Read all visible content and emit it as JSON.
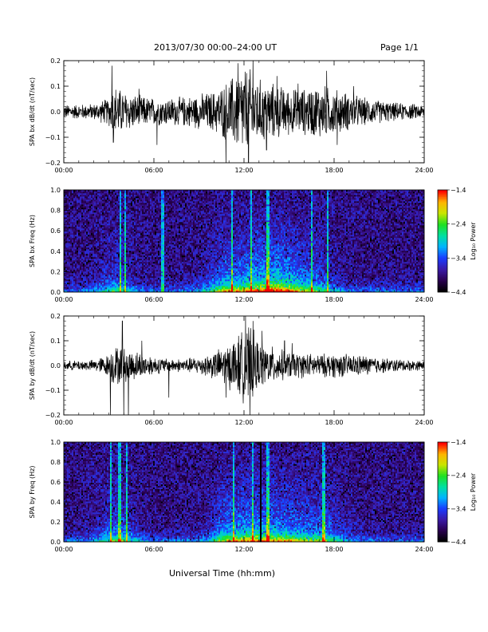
{
  "header": {
    "title": "2013/07/30  00:00–24:00 UT",
    "page": "Page 1/1"
  },
  "footer": {
    "xlabel": "Universal Time (hh:mm)"
  },
  "colors": {
    "waveform": "#000000",
    "colormap": [
      "#000000",
      "#2a0050",
      "#3a1aa8",
      "#1a3cff",
      "#00b4ff",
      "#00e0a0",
      "#20e020",
      "#c8e600",
      "#ffb400",
      "#ff0000"
    ]
  },
  "chart_data": [
    {
      "type": "line",
      "panel": "bx-waveform",
      "ylabel": "SPA bx dB/dt (nT/sec)",
      "ylim": [
        -0.2,
        0.2
      ],
      "yticks": [
        -0.2,
        -0.1,
        0.0,
        0.1,
        0.2
      ],
      "ytick_labels": [
        "−0.2",
        "−0.1",
        "0.0",
        "0.1",
        "0.2"
      ],
      "xlim": [
        0,
        24
      ],
      "xtick_labels": [
        "00:00",
        "06:00",
        "12:00",
        "18:00",
        "24:00"
      ],
      "envelope_hours": [
        0,
        2,
        3,
        3.3,
        4,
        5,
        6,
        7,
        8,
        9,
        10,
        10.5,
        11,
        11.5,
        12,
        12.5,
        13,
        14,
        15,
        16,
        17,
        18,
        19,
        20,
        21,
        22,
        23,
        24
      ],
      "envelope_amp": [
        0.03,
        0.035,
        0.06,
        0.12,
        0.09,
        0.07,
        0.06,
        0.06,
        0.065,
        0.075,
        0.09,
        0.11,
        0.14,
        0.17,
        0.2,
        0.18,
        0.14,
        0.12,
        0.1,
        0.1,
        0.12,
        0.1,
        0.08,
        0.06,
        0.05,
        0.04,
        0.035,
        0.03
      ],
      "spikes": [
        [
          3.2,
          0.18
        ],
        [
          3.3,
          -0.12
        ],
        [
          5.0,
          0.09
        ],
        [
          6.2,
          -0.13
        ],
        [
          10.8,
          -0.21
        ],
        [
          11.6,
          0.19
        ],
        [
          12.3,
          -0.22
        ],
        [
          12.6,
          0.21
        ],
        [
          13.5,
          -0.15
        ],
        [
          14.2,
          0.14
        ],
        [
          15.6,
          0.11
        ],
        [
          17.5,
          0.16
        ],
        [
          18.2,
          -0.13
        ],
        [
          19.3,
          0.1
        ]
      ]
    },
    {
      "type": "heatmap",
      "panel": "bx-spectrogram",
      "ylabel": "SPA bx Freq (Hz)",
      "ylim": [
        0.0,
        1.0
      ],
      "yticks": [
        0.0,
        0.2,
        0.4,
        0.6,
        0.8,
        1.0
      ],
      "ytick_labels": [
        "0.0",
        "0.2",
        "0.4",
        "0.6",
        "0.8",
        "1.0"
      ],
      "xlim": [
        0,
        24
      ],
      "xtick_labels": [
        "00:00",
        "06:00",
        "12:00",
        "18:00",
        "24:00"
      ],
      "colorbar_label": "Log₁₀ Power",
      "colorbar_range": [
        -4.4,
        -1.4
      ],
      "colorbar_ticks": [
        -1.4,
        -2.4,
        -3.4,
        -4.4
      ],
      "colorbar_tick_labels": [
        "−1.4",
        "−2.4",
        "−3.4",
        "−4.4"
      ],
      "bright_lines_hours": [
        3.8,
        4.1,
        6.6,
        11.2,
        12.5,
        13.6,
        16.5,
        17.6
      ],
      "dark_lines_hours": []
    },
    {
      "type": "line",
      "panel": "by-waveform",
      "ylabel": "SPA by dB/dt (nT/sec)",
      "ylim": [
        -0.2,
        0.2
      ],
      "yticks": [
        -0.2,
        -0.1,
        0.0,
        0.1,
        0.2
      ],
      "ytick_labels": [
        "−0.2",
        "−0.1",
        "0.0",
        "0.1",
        "0.2"
      ],
      "xlim": [
        0,
        24
      ],
      "xtick_labels": [
        "00:00",
        "06:00",
        "12:00",
        "18:00",
        "24:00"
      ],
      "envelope_hours": [
        0,
        2,
        3,
        3.3,
        4,
        5,
        6,
        7,
        8,
        9,
        10,
        10.5,
        11,
        11.5,
        12,
        12.5,
        13,
        14,
        15,
        16,
        17,
        18,
        19,
        20,
        21,
        22,
        23,
        24
      ],
      "envelope_amp": [
        0.02,
        0.025,
        0.05,
        0.09,
        0.08,
        0.06,
        0.04,
        0.03,
        0.03,
        0.04,
        0.06,
        0.08,
        0.1,
        0.13,
        0.16,
        0.17,
        0.1,
        0.08,
        0.06,
        0.055,
        0.05,
        0.055,
        0.05,
        0.045,
        0.035,
        0.03,
        0.025,
        0.02
      ],
      "spikes": [
        [
          3.1,
          -0.2
        ],
        [
          3.9,
          0.18
        ],
        [
          4.0,
          -0.21
        ],
        [
          4.3,
          -0.22
        ],
        [
          5.2,
          0.1
        ],
        [
          7.0,
          -0.13
        ],
        [
          10.8,
          -0.13
        ],
        [
          12.1,
          0.2
        ],
        [
          12.4,
          -0.21
        ],
        [
          12.6,
          0.18
        ],
        [
          13.2,
          0.14
        ],
        [
          14.7,
          0.1
        ],
        [
          15.2,
          0.09
        ]
      ]
    },
    {
      "type": "heatmap",
      "panel": "by-spectrogram",
      "ylabel": "SPA by Freq (Hz)",
      "ylim": [
        0.0,
        1.0
      ],
      "yticks": [
        0.0,
        0.2,
        0.4,
        0.6,
        0.8,
        1.0
      ],
      "ytick_labels": [
        "0.0",
        "0.2",
        "0.4",
        "0.6",
        "0.8",
        "1.0"
      ],
      "xlim": [
        0,
        24
      ],
      "xtick_labels": [
        "00:00",
        "06:00",
        "12:00",
        "18:00",
        "24:00"
      ],
      "colorbar_label": "Log₁₀ Power",
      "colorbar_range": [
        -4.4,
        -1.4
      ],
      "colorbar_ticks": [
        -1.4,
        -2.4,
        -3.4,
        -4.4
      ],
      "colorbar_tick_labels": [
        "−1.4",
        "−2.4",
        "−3.4",
        "−4.4"
      ],
      "bright_lines_hours": [
        3.1,
        3.7,
        4.2,
        11.3,
        12.6,
        13.6,
        17.3
      ],
      "dark_lines_hours": [
        13.1
      ]
    }
  ]
}
